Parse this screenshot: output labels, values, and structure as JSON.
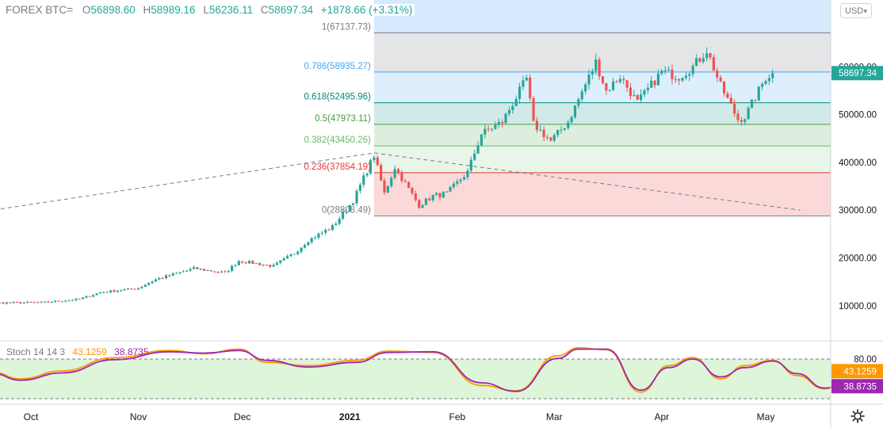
{
  "header": {
    "symbol": "FOREX BTC=",
    "open_label": "O",
    "open": "56898.60",
    "high_label": "H",
    "high": "58989.16",
    "low_label": "L",
    "low": "56236.11",
    "close_label": "C",
    "close": "58697.34",
    "change": "+1878.66 (+3.31%)"
  },
  "currency_button": {
    "label": "USD"
  },
  "stochastic": {
    "name": "Stoch 14 14 3",
    "k_value": "43.1259",
    "d_value": "38.8735"
  },
  "colors": {
    "up": "#26a69a",
    "down": "#ef5350",
    "stoch_k": "#ff9800",
    "stoch_d": "#9c27b0",
    "price_badge": "#26a69a"
  },
  "icons": {
    "settings": "gear-icon",
    "currency_dropdown": "chevron-down-icon"
  },
  "chart_data": [
    {
      "type": "candlestick",
      "title": "",
      "time_axis": [
        "Oct",
        "Nov",
        "Dec",
        "2021",
        "Feb",
        "Mar",
        "Apr",
        "May"
      ],
      "time_axis_dates": [
        "2020-10-01",
        "2020-11-01",
        "2020-12-01",
        "2021-01-01",
        "2021-02-01",
        "2021-03-01",
        "2021-04-01",
        "2021-05-01"
      ],
      "date_range": [
        "2020-09-06",
        "2021-05-03"
      ],
      "y_ticks": [
        10000,
        20000,
        30000,
        40000,
        50000,
        60000
      ],
      "y_tick_labels": [
        "10000.00",
        "20000.00",
        "30000.00",
        "40000.00",
        "50000.00",
        "60000.00"
      ],
      "ylim": [
        3000,
        74000
      ],
      "last_price": "58697.34",
      "anchors": [
        [
          "2020-09-06",
          10200
        ],
        [
          "2020-09-20",
          10600
        ],
        [
          "2020-10-05",
          10700
        ],
        [
          "2020-10-15",
          11400
        ],
        [
          "2020-10-21",
          12800
        ],
        [
          "2020-11-01",
          13700
        ],
        [
          "2020-11-06",
          15500
        ],
        [
          "2020-11-17",
          17800
        ],
        [
          "2020-11-26",
          16900
        ],
        [
          "2020-11-30",
          19400
        ],
        [
          "2020-12-10",
          18300
        ],
        [
          "2020-12-16",
          21000
        ],
        [
          "2020-12-20",
          23700
        ],
        [
          "2020-12-27",
          26500
        ],
        [
          "2021-01-02",
          32000
        ],
        [
          "2021-01-08",
          41500
        ],
        [
          "2021-01-11",
          33500
        ],
        [
          "2021-01-14",
          39000
        ],
        [
          "2021-01-21",
          31000
        ],
        [
          "2021-01-25",
          33000
        ],
        [
          "2021-01-29",
          33500
        ],
        [
          "2021-02-04",
          38000
        ],
        [
          "2021-02-08",
          46000
        ],
        [
          "2021-02-14",
          48500
        ],
        [
          "2021-02-21",
          57500
        ],
        [
          "2021-02-23",
          48000
        ],
        [
          "2021-02-28",
          44500
        ],
        [
          "2021-03-05",
          48500
        ],
        [
          "2021-03-13",
          61000
        ],
        [
          "2021-03-16",
          55000
        ],
        [
          "2021-03-20",
          58000
        ],
        [
          "2021-03-25",
          52500
        ],
        [
          "2021-04-01",
          59000
        ],
        [
          "2021-04-06",
          58000
        ],
        [
          "2021-04-10",
          60000
        ],
        [
          "2021-04-14",
          63500
        ],
        [
          "2021-04-18",
          56000
        ],
        [
          "2021-04-23",
          49000
        ],
        [
          "2021-04-25",
          49500
        ],
        [
          "2021-05-01",
          57800
        ],
        [
          "2021-05-03",
          58697
        ]
      ],
      "fibonacci": [
        {
          "label": "1(67137.73)",
          "value": 67137.73,
          "color": "#787b86"
        },
        {
          "label": "0.786(58935.27)",
          "value": 58935.27,
          "color": "#42a5f5"
        },
        {
          "label": "0.618(52495.96)",
          "value": 52495.96,
          "color": "#00897b"
        },
        {
          "label": "0.5(47973.11)",
          "value": 47973.11,
          "color": "#43a047"
        },
        {
          "label": "0.382(43450.26)",
          "value": 43450.26,
          "color": "#66bb6a"
        },
        {
          "label": "0.236(37854.19)",
          "value": 37854.19,
          "color": "#e53935"
        },
        {
          "label": "0(28808.49)",
          "value": 28808.49,
          "color": "#787b86"
        }
      ],
      "fib_start_date": "2021-01-08",
      "trend_lines": [
        {
          "from": [
            "2020-09-06",
            28500
          ],
          "to": [
            "2021-01-08",
            42000
          ]
        },
        {
          "from": [
            "2021-01-08",
            42000
          ],
          "to": [
            "2021-05-11",
            30000
          ]
        }
      ]
    },
    {
      "type": "line",
      "title": "Stoch 14 14 3",
      "ylim": [
        0,
        100
      ],
      "levels": [
        80,
        20
      ],
      "level_labels": [
        "80.00"
      ],
      "series": [
        {
          "name": "%K",
          "color": "#ff9800",
          "last": 43.1259,
          "anchors": [
            [
              "2020-09-06",
              45
            ],
            [
              "2020-09-20",
              60
            ],
            [
              "2020-09-28",
              50
            ],
            [
              "2020-10-10",
              62
            ],
            [
              "2020-10-25",
              82
            ],
            [
              "2020-11-10",
              93
            ],
            [
              "2020-11-20",
              88
            ],
            [
              "2020-11-30",
              95
            ],
            [
              "2020-12-08",
              75
            ],
            [
              "2020-12-20",
              70
            ],
            [
              "2021-01-03",
              78
            ],
            [
              "2021-01-12",
              92
            ],
            [
              "2021-01-25",
              90
            ],
            [
              "2021-02-08",
              40
            ],
            [
              "2021-02-18",
              32
            ],
            [
              "2021-03-02",
              85
            ],
            [
              "2021-03-08",
              97
            ],
            [
              "2021-03-16",
              94
            ],
            [
              "2021-03-26",
              30
            ],
            [
              "2021-04-03",
              70
            ],
            [
              "2021-04-10",
              82
            ],
            [
              "2021-04-18",
              50
            ],
            [
              "2021-04-25",
              70
            ],
            [
              "2021-05-03",
              78
            ],
            [
              "2021-05-10",
              55
            ],
            [
              "2021-05-18",
              35
            ],
            [
              "2021-05-23",
              43.1
            ]
          ]
        },
        {
          "name": "%D",
          "color": "#9c27b0",
          "last": 38.8735,
          "anchors": [
            [
              "2020-09-06",
              42
            ],
            [
              "2020-09-20",
              58
            ],
            [
              "2020-09-28",
              48
            ],
            [
              "2020-10-10",
              59
            ],
            [
              "2020-10-25",
              79
            ],
            [
              "2020-11-10",
              91
            ],
            [
              "2020-11-20",
              89
            ],
            [
              "2020-11-30",
              93
            ],
            [
              "2020-12-08",
              78
            ],
            [
              "2020-12-20",
              68
            ],
            [
              "2021-01-03",
              75
            ],
            [
              "2021-01-12",
              90
            ],
            [
              "2021-01-25",
              91
            ],
            [
              "2021-02-08",
              44
            ],
            [
              "2021-02-18",
              31
            ],
            [
              "2021-03-02",
              81
            ],
            [
              "2021-03-08",
              95
            ],
            [
              "2021-03-16",
              95
            ],
            [
              "2021-03-26",
              33
            ],
            [
              "2021-04-03",
              67
            ],
            [
              "2021-04-10",
              80
            ],
            [
              "2021-04-18",
              53
            ],
            [
              "2021-04-25",
              67
            ],
            [
              "2021-05-03",
              77
            ],
            [
              "2021-05-10",
              58
            ],
            [
              "2021-05-18",
              36
            ],
            [
              "2021-05-23",
              38.9
            ]
          ]
        }
      ]
    }
  ]
}
